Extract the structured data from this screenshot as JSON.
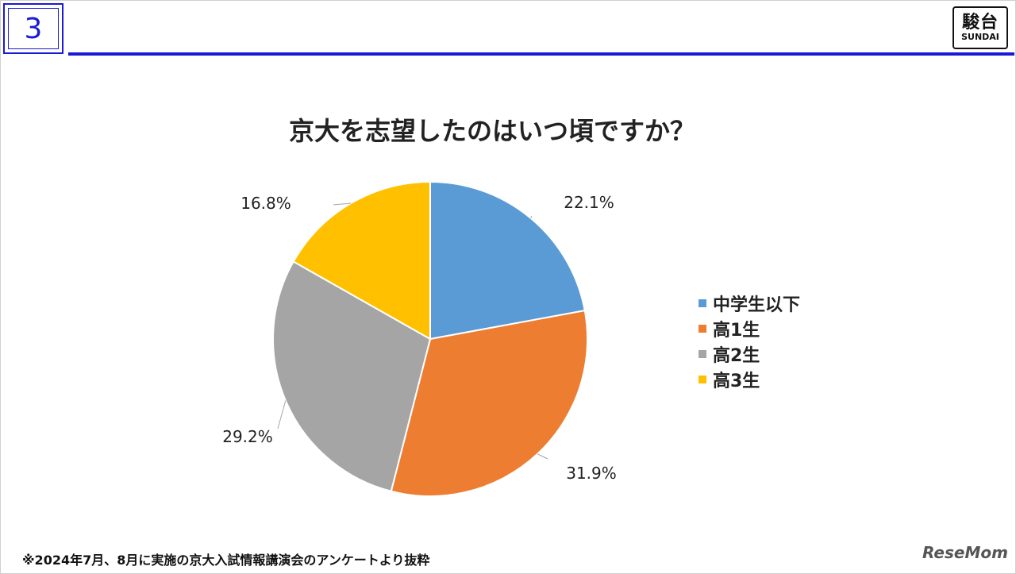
{
  "slide_number": "3",
  "logo": {
    "kanji": "駿台",
    "latin": "SUNDAI"
  },
  "chart_data": {
    "type": "pie",
    "title": "京大を志望したのはいつ頃ですか？",
    "categories": [
      "中学生以下",
      "高1生",
      "高2生",
      "高3生"
    ],
    "values": [
      22.1,
      31.9,
      29.2,
      16.8
    ],
    "labels": [
      "22.1%",
      "31.9%",
      "29.2%",
      "16.8%"
    ],
    "colors": [
      "#5B9BD5",
      "#ED7D31",
      "#A5A5A5",
      "#FFC000"
    ],
    "legend_position": "right"
  },
  "footnote": "※2024年7月、8月に実施の京大入試情報講演会のアンケートより抜粋",
  "watermark": "ReseMom"
}
